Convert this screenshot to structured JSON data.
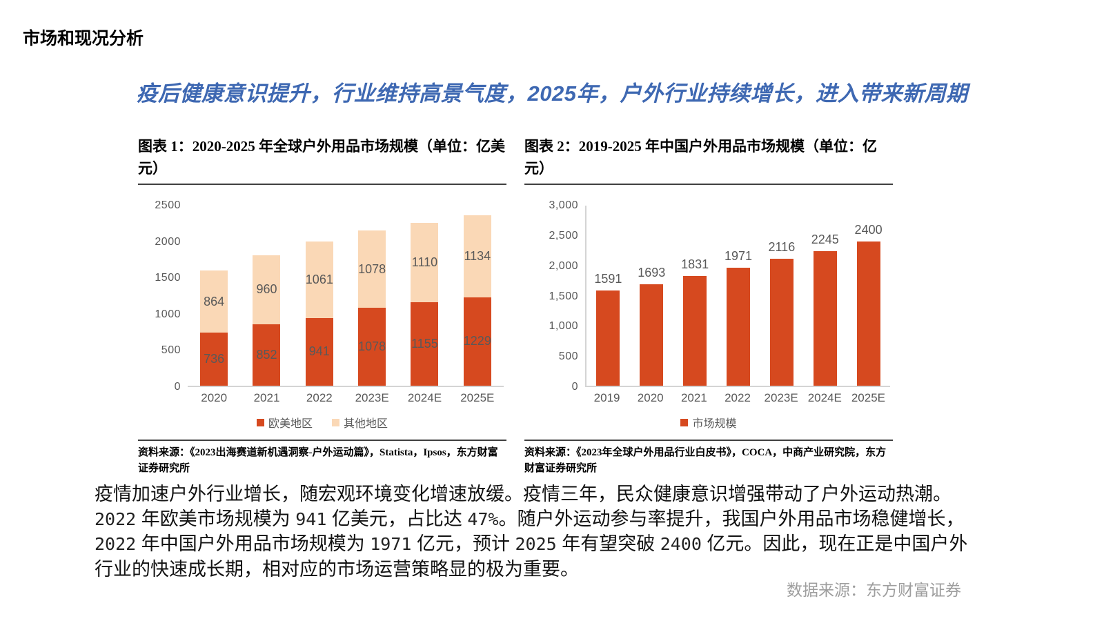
{
  "page": {
    "title": "市场和现况分析",
    "headline": "疫后健康意识提升，行业维持高景气度，2025年，户外行业持续增长，进入带来新周期",
    "footer_source": "数据来源：东方财富证券"
  },
  "colors": {
    "headline_blue": "#3E68B2",
    "bar_red": "#D6491F",
    "bar_peach": "#FAD8B6",
    "label_gray": "#595959"
  },
  "paragraph": {
    "segments": [
      {
        "t": "疫情加速户外行业增长，随宏观环境变化增速放缓。疫情三年，民众健康意识增强带动了户外运动热潮。",
        "num": false
      },
      {
        "t": "2022",
        "num": true
      },
      {
        "t": " 年欧美市场规模为 ",
        "num": false
      },
      {
        "t": "941",
        "num": true
      },
      {
        "t": " 亿美元，占比达 ",
        "num": false
      },
      {
        "t": "47%",
        "num": true
      },
      {
        "t": "。随户外运动参与率提升，我国户外用品市场稳健增长，",
        "num": false
      },
      {
        "t": "2022",
        "num": true
      },
      {
        "t": " 年中国户外用品市场规模为 ",
        "num": false
      },
      {
        "t": "1971",
        "num": true
      },
      {
        "t": " 亿元，预计 ",
        "num": false
      },
      {
        "t": "2025",
        "num": true
      },
      {
        "t": " 年有望突破 ",
        "num": false
      },
      {
        "t": "2400",
        "num": true
      },
      {
        "t": " 亿元。因此，现在正是中国户外行业的快速成长期，相对应的市场运营策略显的极为重要。",
        "num": false
      }
    ]
  },
  "chart_data": [
    {
      "type": "bar",
      "stacked": true,
      "title": "图表 1：2020-2025 年全球户外用品市场规模（单位：亿美元）",
      "categories": [
        "2020",
        "2021",
        "2022",
        "2023E",
        "2024E",
        "2025E"
      ],
      "series": [
        {
          "name": "欧美地区",
          "color": "#D6491F",
          "values": [
            736,
            852,
            941,
            1078,
            1155,
            1229
          ]
        },
        {
          "name": "其他地区",
          "color": "#FAD8B6",
          "values": [
            864,
            960,
            1061,
            1078,
            1110,
            1134
          ]
        }
      ],
      "ylim": [
        0,
        2500
      ],
      "yticks": [
        "2500",
        "2000",
        "1500",
        "1000",
        "500",
        "0"
      ],
      "grid": false,
      "legend_position": "bottom",
      "source": "资料来源：《2023出海赛道新机遇洞察-户外运动篇》，Statista，Ipsos，东方财富证券研究所"
    },
    {
      "type": "bar",
      "stacked": false,
      "title": "图表 2：2019-2025 年中国户外用品市场规模（单位：亿元）",
      "categories": [
        "2019",
        "2020",
        "2021",
        "2022",
        "2023E",
        "2024E",
        "2025E"
      ],
      "series": [
        {
          "name": "市场规模",
          "color": "#D6491F",
          "values": [
            1591,
            1693,
            1831,
            1971,
            2116,
            2245,
            2400
          ]
        }
      ],
      "ylim": [
        0,
        3000
      ],
      "yticks": [
        "3,000",
        "2,500",
        "2,000",
        "1,500",
        "1,000",
        "500",
        "0"
      ],
      "grid": false,
      "legend_position": "bottom",
      "source": "资料来源：《2023年全球户外用品行业白皮书》，COCA，中商产业研究院，东方财富证券研究所"
    }
  ]
}
